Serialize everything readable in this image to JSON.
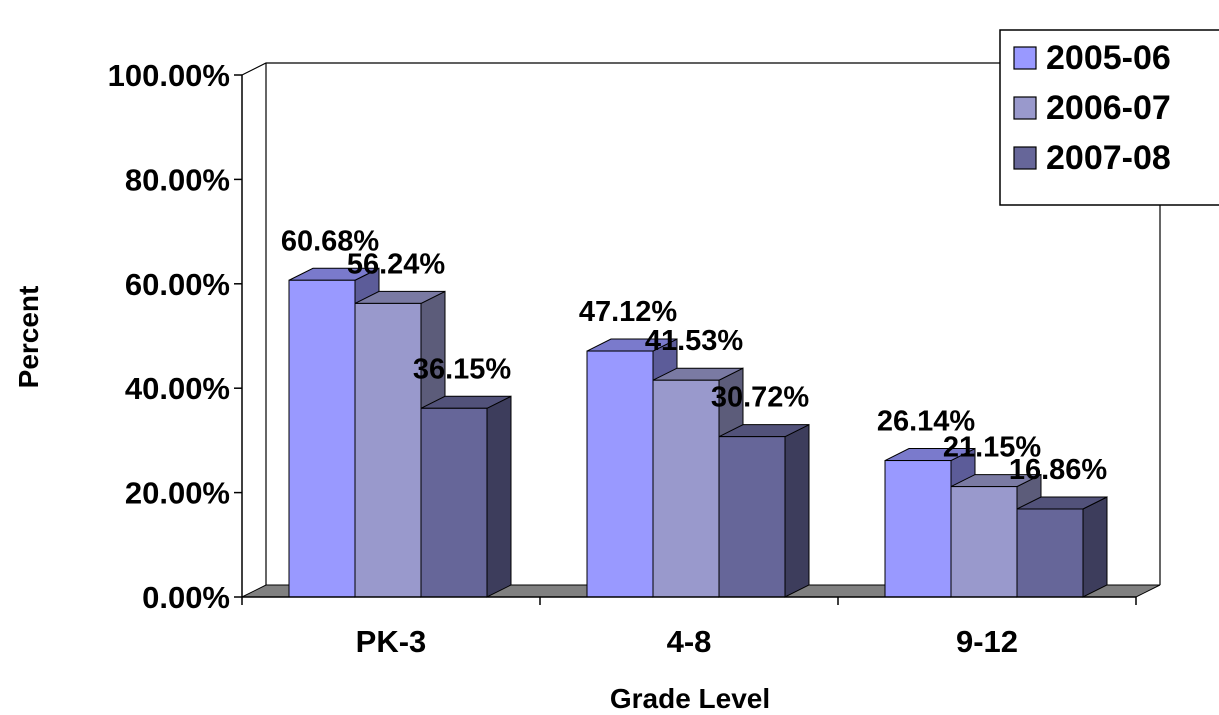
{
  "chart_data": {
    "type": "bar",
    "categories": [
      "PK-3",
      "4-8",
      "9-12"
    ],
    "series": [
      {
        "name": "2005-06",
        "values": [
          60.68,
          47.12,
          26.14
        ],
        "labels": [
          "60.68%",
          "47.12%",
          "26.14%"
        ]
      },
      {
        "name": "2006-07",
        "values": [
          56.24,
          41.53,
          21.15
        ],
        "labels": [
          "56.24%",
          "41.53%",
          "21.15%"
        ]
      },
      {
        "name": "2007-08",
        "values": [
          36.15,
          30.72,
          16.86
        ],
        "labels": [
          "36.15%",
          "30.72%",
          "16.86%"
        ]
      }
    ],
    "xlabel": "Grade Level",
    "ylabel": "Percent",
    "ylim": [
      0,
      100
    ],
    "yticks": [
      "0.00%",
      "20.00%",
      "40.00%",
      "60.00%",
      "80.00%",
      "100.00%"
    ],
    "legend_position": "top-right",
    "grid": false,
    "style": "3d-clustered-column"
  },
  "colors": {
    "series": [
      "#9999FF",
      "#9999CC",
      "#666699"
    ],
    "series_side": [
      "#5C5C99",
      "#5C5C7A",
      "#3D3D5C"
    ],
    "series_top": [
      "#7A7ACC",
      "#7A7AA3",
      "#52527A"
    ],
    "floor": "#808080"
  }
}
